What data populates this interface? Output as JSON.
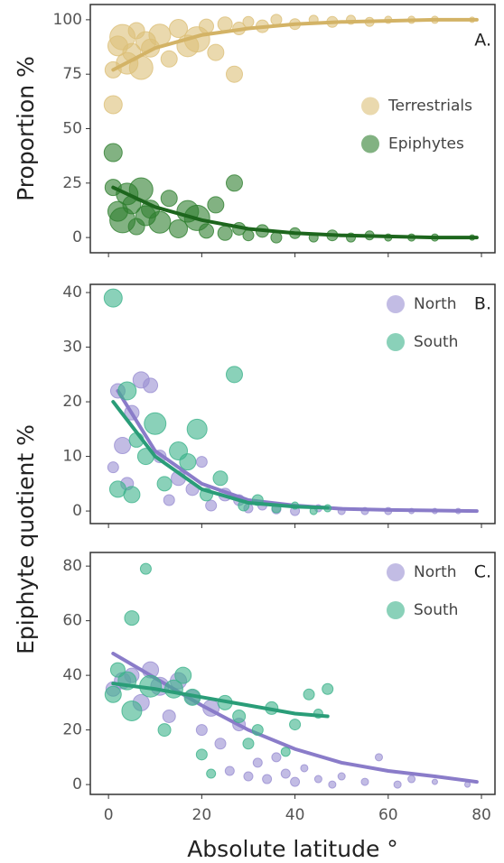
{
  "chart_data": [
    {
      "type": "scatter",
      "ylabel": "Proportion %",
      "annotation": "A.",
      "legend": "center right",
      "xlim": [
        -3.9,
        82.9
      ],
      "xticks": [
        0,
        20,
        40,
        60,
        80
      ],
      "ylim": [
        -7,
        107
      ],
      "yticks": [
        0,
        25,
        50,
        75,
        100
      ],
      "series": [
        {
          "name": "Terrestrials",
          "color": "#dcbf78",
          "fit_color": "#d3b366",
          "x": [
            1,
            1,
            2,
            3,
            4,
            5,
            6,
            7,
            8,
            9,
            11,
            13,
            15,
            17,
            19,
            21,
            23,
            25,
            27,
            28,
            30,
            33,
            36,
            40,
            44,
            48,
            52,
            56,
            60,
            65,
            70,
            78
          ],
          "values": [
            61,
            77,
            88,
            92,
            80,
            85,
            95,
            78,
            90,
            87,
            93,
            82,
            96,
            88,
            91,
            97,
            85,
            98,
            75,
            96,
            99,
            97,
            100,
            98,
            100,
            99,
            100,
            99,
            100,
            100,
            100,
            100
          ],
          "sizes": [
            10,
            9,
            11,
            14,
            12,
            10,
            9,
            13,
            11,
            10,
            12,
            9,
            10,
            12,
            14,
            8,
            9,
            8,
            9,
            7,
            6,
            7,
            6,
            6,
            5,
            6,
            5,
            5,
            4,
            4,
            4,
            3
          ],
          "fit_x": [
            1,
            10,
            20,
            30,
            40,
            50,
            60,
            70,
            79
          ],
          "fit_values": [
            77,
            87,
            93,
            96,
            98,
            99,
            99.5,
            100,
            100
          ]
        },
        {
          "name": "Epiphytes",
          "color": "#2f7f2f",
          "fit_color": "#1d661d",
          "x": [
            1,
            1,
            2,
            3,
            4,
            5,
            6,
            7,
            8,
            9,
            11,
            13,
            15,
            17,
            19,
            21,
            23,
            25,
            27,
            28,
            30,
            33,
            36,
            40,
            44,
            48,
            52,
            56,
            60,
            65,
            70,
            78
          ],
          "values": [
            39,
            23,
            12,
            8,
            20,
            15,
            5,
            22,
            10,
            13,
            7,
            18,
            4,
            12,
            9,
            3,
            15,
            2,
            25,
            4,
            1,
            3,
            0,
            2,
            0,
            1,
            0,
            1,
            0,
            0,
            0,
            0
          ],
          "sizes": [
            10,
            9,
            11,
            14,
            12,
            10,
            9,
            13,
            11,
            10,
            12,
            9,
            10,
            12,
            14,
            8,
            9,
            8,
            9,
            7,
            6,
            7,
            6,
            6,
            5,
            6,
            5,
            5,
            4,
            4,
            4,
            3
          ],
          "fit_x": [
            1,
            10,
            20,
            30,
            40,
            50,
            60,
            70,
            79
          ],
          "fit_values": [
            23,
            14,
            8,
            4,
            2,
            1,
            0.5,
            0,
            0
          ]
        }
      ]
    },
    {
      "type": "scatter",
      "ylabel": "Epiphyte quotient %",
      "annotation": "B.",
      "legend": "upper right",
      "xlim": [
        -3.9,
        82.9
      ],
      "xticks": [
        0,
        20,
        40,
        60,
        80
      ],
      "ylim": [
        -2.3,
        41.5
      ],
      "yticks": [
        0,
        10,
        20,
        30,
        40
      ],
      "series": [
        {
          "name": "North",
          "color": "#9a8fd2",
          "fit_color": "#8a7cc9",
          "x": [
            1,
            2,
            3,
            4,
            5,
            7,
            9,
            11,
            13,
            15,
            18,
            20,
            22,
            25,
            28,
            30,
            33,
            36,
            40,
            45,
            50,
            55,
            60,
            65,
            70,
            75
          ],
          "values": [
            8,
            22,
            12,
            5,
            18,
            24,
            23,
            10,
            2,
            6,
            4,
            9,
            1,
            3,
            2,
            0.5,
            1,
            0.3,
            0,
            0.5,
            0,
            0,
            0,
            0,
            0,
            0
          ],
          "sizes": [
            6,
            8,
            9,
            7,
            8,
            9,
            8,
            7,
            6,
            8,
            7,
            6,
            6,
            7,
            6,
            5,
            5,
            5,
            5,
            4,
            4,
            4,
            4,
            3,
            3,
            3
          ],
          "fit_x": [
            2,
            10,
            20,
            30,
            40,
            50,
            60,
            70,
            79
          ],
          "fit_values": [
            22,
            11,
            5,
            2,
            1,
            0.4,
            0.2,
            0.1,
            0
          ]
        },
        {
          "name": "South",
          "color": "#3cb38b",
          "fit_color": "#2a9d78",
          "x": [
            1,
            2,
            4,
            5,
            6,
            8,
            10,
            12,
            15,
            17,
            19,
            21,
            24,
            27,
            29,
            32,
            36,
            40,
            44,
            47
          ],
          "values": [
            39,
            4,
            22,
            3,
            13,
            10,
            16,
            5,
            11,
            9,
            15,
            3,
            6,
            25,
            1,
            2,
            0.5,
            1,
            0,
            0.5
          ],
          "sizes": [
            10,
            9,
            10,
            9,
            8,
            9,
            12,
            8,
            10,
            9,
            11,
            7,
            8,
            9,
            6,
            6,
            5,
            4,
            4,
            4
          ],
          "fit_x": [
            1,
            10,
            20,
            30,
            40,
            47
          ],
          "fit_values": [
            20,
            10,
            4,
            1.5,
            0.8,
            0.6
          ]
        }
      ]
    },
    {
      "type": "scatter",
      "annotation": "C.",
      "legend": "upper right",
      "xlabel": "Absolute latitude °",
      "xlim": [
        -3.9,
        82.9
      ],
      "xticks": [
        0,
        20,
        40,
        60,
        80
      ],
      "ylim": [
        -3.6,
        85
      ],
      "yticks": [
        0,
        20,
        40,
        60,
        80
      ],
      "series": [
        {
          "name": "North",
          "color": "#9a8fd2",
          "fit_color": "#8a7cc9",
          "x": [
            1,
            3,
            5,
            7,
            9,
            11,
            13,
            15,
            18,
            20,
            22,
            24,
            26,
            28,
            30,
            32,
            34,
            36,
            38,
            40,
            42,
            45,
            48,
            50,
            55,
            58,
            62,
            65,
            70,
            77
          ],
          "values": [
            35,
            38,
            40,
            30,
            42,
            36,
            25,
            38,
            32,
            20,
            28,
            15,
            5,
            22,
            3,
            8,
            2,
            10,
            4,
            1,
            6,
            2,
            0,
            3,
            1,
            10,
            0,
            2,
            1,
            0
          ],
          "sizes": [
            8,
            9,
            8,
            9,
            9,
            10,
            7,
            9,
            8,
            6,
            9,
            6,
            5,
            7,
            5,
            5,
            5,
            5,
            5,
            5,
            4,
            4,
            4,
            4,
            4,
            4,
            4,
            4,
            3,
            3
          ],
          "fit_x": [
            1,
            10,
            20,
            30,
            40,
            50,
            60,
            70,
            79
          ],
          "fit_values": [
            48,
            39,
            29,
            20,
            13,
            8,
            5,
            3,
            1
          ]
        },
        {
          "name": "South",
          "color": "#3cb38b",
          "fit_color": "#2a9d78",
          "x": [
            1,
            2,
            4,
            5,
            5,
            8,
            9,
            12,
            14,
            16,
            18,
            20,
            22,
            25,
            28,
            30,
            32,
            35,
            38,
            40,
            43,
            45,
            47
          ],
          "values": [
            33,
            42,
            38,
            27,
            61,
            79,
            36,
            20,
            35,
            40,
            32,
            11,
            4,
            30,
            25,
            15,
            20,
            28,
            12,
            22,
            33,
            26,
            35
          ],
          "sizes": [
            9,
            8,
            10,
            11,
            8,
            6,
            12,
            7,
            10,
            9,
            9,
            6,
            5,
            8,
            7,
            6,
            6,
            7,
            5,
            6,
            6,
            5,
            6
          ],
          "fit_x": [
            1,
            10,
            20,
            30,
            40,
            47
          ],
          "fit_values": [
            37,
            35,
            32,
            29,
            26,
            25
          ]
        }
      ]
    }
  ]
}
